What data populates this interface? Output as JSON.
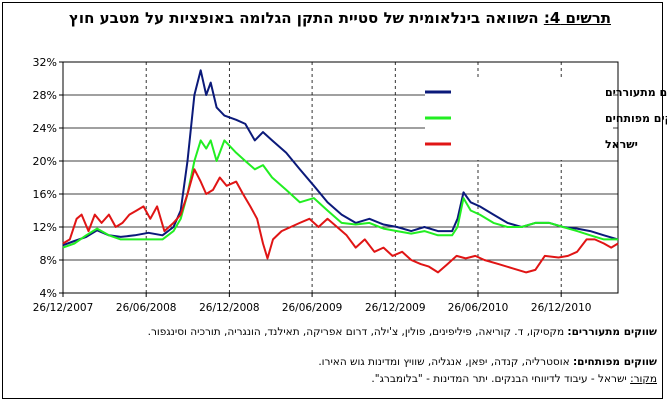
{
  "title": {
    "prefix": "תרשים 4:",
    "text": " השוואה בינלאומית של סטיית התקן הגלומה באופציות על מטבע חוץ"
  },
  "chart_data": {
    "type": "line",
    "title": "תרשים 4: השוואה בינלאומית של סטיית התקן הגלומה באופציות על מטבע חוץ",
    "xlabel": "",
    "ylabel": "",
    "y_tick_labels": [
      "4%",
      "8%",
      "12%",
      "16%",
      "20%",
      "24%",
      "28%",
      "32%"
    ],
    "y_ticks": [
      4,
      8,
      12,
      16,
      20,
      24,
      28,
      32
    ],
    "ylim": [
      4,
      32
    ],
    "x_tick_labels": [
      "26/12/2007",
      "26/06/2008",
      "26/12/2008",
      "26/06/2009",
      "26/12/2009",
      "26/06/2010",
      "26/12/2010"
    ],
    "x_ticks": [
      "2007-12-26",
      "2008-06-26",
      "2008-12-26",
      "2009-06-26",
      "2009-12-26",
      "2010-06-26",
      "2010-12-26"
    ],
    "xlim": [
      "2007-12-26",
      "2011-04-30"
    ],
    "grid": "dashed vertical lines at x ticks; horizontal lines at y ticks",
    "legend_position": "top-right",
    "series": [
      {
        "name": "ממוצע שווקים מתעוררים",
        "color": "#0b1a7a",
        "points": [
          [
            "2007-12-26",
            9.8
          ],
          [
            "2008-01-20",
            10.3
          ],
          [
            "2008-02-15",
            10.8
          ],
          [
            "2008-03-10",
            11.6
          ],
          [
            "2008-04-05",
            11.0
          ],
          [
            "2008-05-01",
            10.8
          ],
          [
            "2008-06-01",
            11.0
          ],
          [
            "2008-07-01",
            11.3
          ],
          [
            "2008-08-01",
            11.0
          ],
          [
            "2008-08-25",
            12.0
          ],
          [
            "2008-09-10",
            14.0
          ],
          [
            "2008-09-25",
            20.0
          ],
          [
            "2008-10-10",
            28.0
          ],
          [
            "2008-10-24",
            31.0
          ],
          [
            "2008-11-05",
            28.0
          ],
          [
            "2008-11-15",
            29.5
          ],
          [
            "2008-11-28",
            26.5
          ],
          [
            "2008-12-15",
            25.5
          ],
          [
            "2009-01-10",
            25.0
          ],
          [
            "2009-01-30",
            24.5
          ],
          [
            "2009-02-20",
            22.5
          ],
          [
            "2009-03-10",
            23.5
          ],
          [
            "2009-03-30",
            22.5
          ],
          [
            "2009-04-30",
            21.0
          ],
          [
            "2009-05-30",
            19.0
          ],
          [
            "2009-06-30",
            17.0
          ],
          [
            "2009-07-30",
            15.0
          ],
          [
            "2009-08-30",
            13.5
          ],
          [
            "2009-09-30",
            12.5
          ],
          [
            "2009-10-30",
            13.0
          ],
          [
            "2009-11-30",
            12.3
          ],
          [
            "2009-12-30",
            12.0
          ],
          [
            "2010-01-30",
            11.5
          ],
          [
            "2010-02-28",
            12.0
          ],
          [
            "2010-03-30",
            11.5
          ],
          [
            "2010-04-30",
            11.5
          ],
          [
            "2010-05-12",
            13.0
          ],
          [
            "2010-05-25",
            16.2
          ],
          [
            "2010-06-10",
            15.0
          ],
          [
            "2010-06-30",
            14.5
          ],
          [
            "2010-07-30",
            13.5
          ],
          [
            "2010-08-30",
            12.5
          ],
          [
            "2010-09-30",
            12.0
          ],
          [
            "2010-10-30",
            12.5
          ],
          [
            "2010-11-30",
            12.5
          ],
          [
            "2010-12-30",
            12.0
          ],
          [
            "2011-01-30",
            11.8
          ],
          [
            "2011-02-28",
            11.5
          ],
          [
            "2011-03-30",
            11.0
          ],
          [
            "2011-04-30",
            10.5
          ]
        ]
      },
      {
        "name": "ממוצע שווקים מפותחים",
        "color": "#22ee22",
        "points": [
          [
            "2007-12-26",
            9.5
          ],
          [
            "2008-01-20",
            10.0
          ],
          [
            "2008-02-15",
            11.0
          ],
          [
            "2008-03-10",
            11.8
          ],
          [
            "2008-04-05",
            11.0
          ],
          [
            "2008-05-01",
            10.5
          ],
          [
            "2008-06-01",
            10.5
          ],
          [
            "2008-07-01",
            10.5
          ],
          [
            "2008-08-01",
            10.5
          ],
          [
            "2008-08-25",
            11.5
          ],
          [
            "2008-09-10",
            13.0
          ],
          [
            "2008-09-25",
            16.0
          ],
          [
            "2008-10-10",
            20.0
          ],
          [
            "2008-10-24",
            22.5
          ],
          [
            "2008-11-05",
            21.5
          ],
          [
            "2008-11-15",
            22.5
          ],
          [
            "2008-11-28",
            20.0
          ],
          [
            "2008-12-15",
            22.5
          ],
          [
            "2009-01-10",
            21.0
          ],
          [
            "2009-01-30",
            20.0
          ],
          [
            "2009-02-20",
            19.0
          ],
          [
            "2009-03-10",
            19.5
          ],
          [
            "2009-03-30",
            18.0
          ],
          [
            "2009-04-30",
            16.5
          ],
          [
            "2009-05-30",
            15.0
          ],
          [
            "2009-06-30",
            15.5
          ],
          [
            "2009-07-30",
            14.0
          ],
          [
            "2009-08-30",
            12.5
          ],
          [
            "2009-09-30",
            12.3
          ],
          [
            "2009-10-30",
            12.5
          ],
          [
            "2009-11-30",
            11.8
          ],
          [
            "2009-12-30",
            11.5
          ],
          [
            "2010-01-30",
            11.2
          ],
          [
            "2010-02-28",
            11.5
          ],
          [
            "2010-03-30",
            11.0
          ],
          [
            "2010-04-30",
            11.0
          ],
          [
            "2010-05-12",
            12.0
          ],
          [
            "2010-05-25",
            15.5
          ],
          [
            "2010-06-10",
            14.0
          ],
          [
            "2010-06-30",
            13.5
          ],
          [
            "2010-07-30",
            12.5
          ],
          [
            "2010-08-30",
            12.0
          ],
          [
            "2010-09-30",
            12.0
          ],
          [
            "2010-10-30",
            12.5
          ],
          [
            "2010-11-30",
            12.5
          ],
          [
            "2010-12-30",
            12.0
          ],
          [
            "2011-01-30",
            11.5
          ],
          [
            "2011-02-28",
            11.0
          ],
          [
            "2011-03-30",
            10.5
          ],
          [
            "2011-04-30",
            10.5
          ]
        ]
      },
      {
        "name": "ישראל",
        "color": "#e01515",
        "points": [
          [
            "2007-12-26",
            10.0
          ],
          [
            "2008-01-10",
            10.5
          ],
          [
            "2008-01-25",
            13.0
          ],
          [
            "2008-02-05",
            13.5
          ],
          [
            "2008-02-20",
            11.5
          ],
          [
            "2008-03-05",
            13.5
          ],
          [
            "2008-03-20",
            12.5
          ],
          [
            "2008-04-05",
            13.5
          ],
          [
            "2008-04-20",
            12.0
          ],
          [
            "2008-05-05",
            12.5
          ],
          [
            "2008-05-20",
            13.5
          ],
          [
            "2008-06-05",
            14.0
          ],
          [
            "2008-06-20",
            14.5
          ],
          [
            "2008-07-05",
            13.0
          ],
          [
            "2008-07-20",
            14.5
          ],
          [
            "2008-08-05",
            11.5
          ],
          [
            "2008-08-25",
            12.5
          ],
          [
            "2008-09-10",
            13.5
          ],
          [
            "2008-09-25",
            16.0
          ],
          [
            "2008-10-10",
            19.0
          ],
          [
            "2008-10-24",
            17.5
          ],
          [
            "2008-11-05",
            16.0
          ],
          [
            "2008-11-20",
            16.5
          ],
          [
            "2008-12-05",
            18.0
          ],
          [
            "2008-12-20",
            17.0
          ],
          [
            "2009-01-10",
            17.5
          ],
          [
            "2009-01-25",
            16.0
          ],
          [
            "2009-02-10",
            14.5
          ],
          [
            "2009-02-25",
            13.0
          ],
          [
            "2009-03-10",
            10.0
          ],
          [
            "2009-03-20",
            8.2
          ],
          [
            "2009-04-01",
            10.5
          ],
          [
            "2009-04-20",
            11.5
          ],
          [
            "2009-05-10",
            12.0
          ],
          [
            "2009-05-30",
            12.5
          ],
          [
            "2009-06-20",
            13.0
          ],
          [
            "2009-07-10",
            12.0
          ],
          [
            "2009-07-30",
            13.0
          ],
          [
            "2009-08-20",
            12.0
          ],
          [
            "2009-09-10",
            11.0
          ],
          [
            "2009-09-30",
            9.5
          ],
          [
            "2009-10-20",
            10.5
          ],
          [
            "2009-11-10",
            9.0
          ],
          [
            "2009-11-30",
            9.5
          ],
          [
            "2009-12-20",
            8.5
          ],
          [
            "2010-01-10",
            9.0
          ],
          [
            "2010-01-30",
            8.0
          ],
          [
            "2010-02-20",
            7.5
          ],
          [
            "2010-03-10",
            7.2
          ],
          [
            "2010-03-30",
            6.5
          ],
          [
            "2010-04-20",
            7.5
          ],
          [
            "2010-05-10",
            8.5
          ],
          [
            "2010-05-30",
            8.2
          ],
          [
            "2010-06-20",
            8.5
          ],
          [
            "2010-07-10",
            8.0
          ],
          [
            "2010-08-10",
            7.5
          ],
          [
            "2010-09-10",
            7.0
          ],
          [
            "2010-10-10",
            6.5
          ],
          [
            "2010-10-30",
            6.8
          ],
          [
            "2010-11-20",
            8.5
          ],
          [
            "2010-12-20",
            8.3
          ],
          [
            "2011-01-10",
            8.5
          ],
          [
            "2011-01-30",
            9.0
          ],
          [
            "2011-02-20",
            10.5
          ],
          [
            "2011-03-10",
            10.5
          ],
          [
            "2011-03-30",
            10.0
          ],
          [
            "2011-04-15",
            9.5
          ],
          [
            "2011-04-30",
            10.0
          ]
        ]
      }
    ]
  },
  "notes": {
    "emerging_label": "שווקים מתעוררים:",
    "emerging_text": " מקסיקו, ד. קוריאה, פיליפינים, פולין, צ'ילה, דרום אפריקה, תאילנד, הונגריה, תורכיה וסינגפור.",
    "developed_label": "שווקים מפותחים:",
    "developed_text": " אוסטרליה, קנדה, יפאן, אנגליה, שוויץ ומדינות גוש האירו.",
    "source_label": "מקור:",
    "source_text": " ישראל - עיבוד לדיווחי הבנקים. יתר המדינות - \"בלומברג\"."
  }
}
